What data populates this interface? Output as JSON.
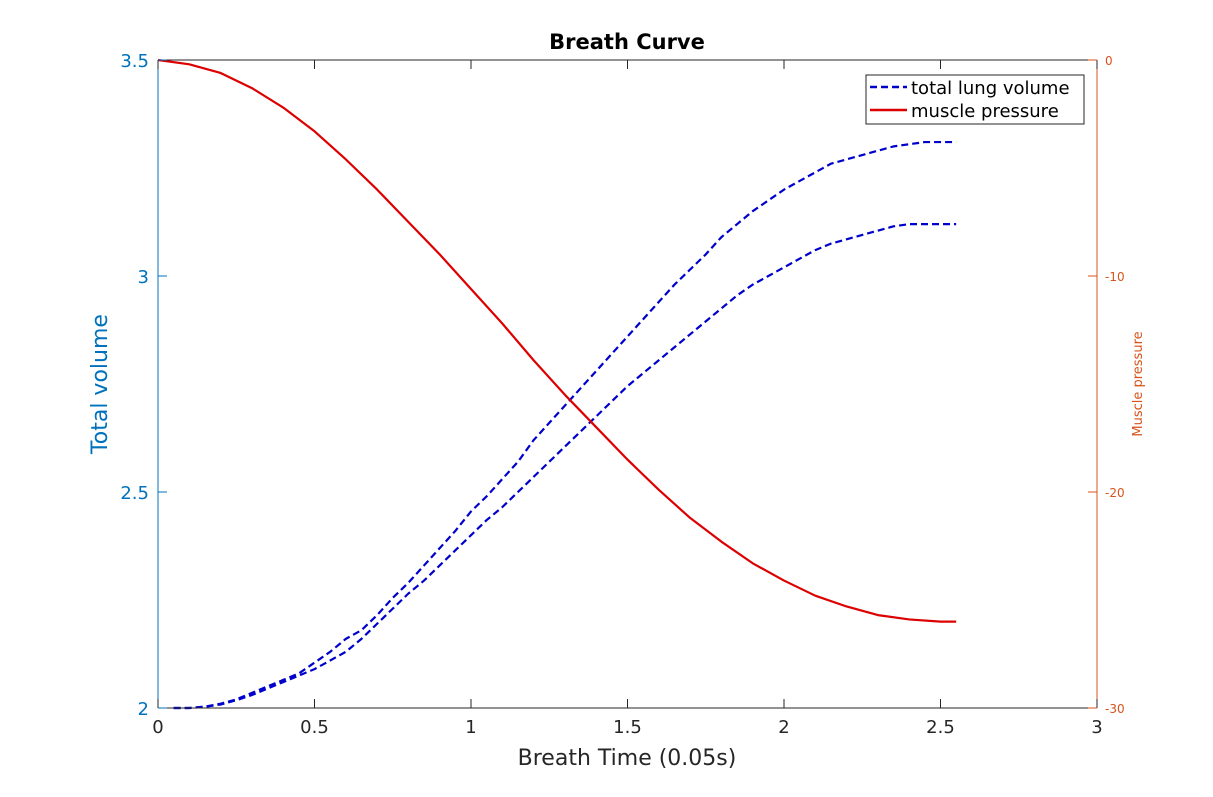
{
  "chart_data": {
    "type": "line",
    "title": "Breath Curve",
    "xlabel": "Breath Time (0.05s)",
    "ylabel_left": "Total volume",
    "ylabel_right": "Muscle pressure",
    "xlim": [
      0,
      3
    ],
    "ylim_left": [
      2,
      3.5
    ],
    "ylim_right": [
      -30,
      0
    ],
    "x_ticks": [
      {
        "value": 0,
        "label": "0"
      },
      {
        "value": 0.5,
        "label": "0.5"
      },
      {
        "value": 1,
        "label": "1"
      },
      {
        "value": 1.5,
        "label": "1.5"
      },
      {
        "value": 2,
        "label": "2"
      },
      {
        "value": 2.5,
        "label": "2.5"
      },
      {
        "value": 3,
        "label": "3"
      }
    ],
    "y_left_ticks": [
      {
        "value": 2,
        "label": "2"
      },
      {
        "value": 2.5,
        "label": "2.5"
      },
      {
        "value": 3,
        "label": "3"
      },
      {
        "value": 3.5,
        "label": "3.5"
      }
    ],
    "y_right_ticks": [
      {
        "value": 0,
        "label": "0"
      },
      {
        "value": -10,
        "label": "-10"
      },
      {
        "value": -20,
        "label": "-20"
      },
      {
        "value": -30,
        "label": "-30"
      }
    ],
    "grid": false,
    "legend_position": "top-right",
    "legend": [
      {
        "label": "total lung volume",
        "color": "#0000cc",
        "style": "dashed"
      },
      {
        "label": "muscle pressure",
        "color": "#dd0000",
        "style": "solid"
      }
    ],
    "colors": {
      "left_axis": "#0072bd",
      "right_axis": "#d95319",
      "volume": "#0000cc",
      "pressure": "#dd0000",
      "text": "#262626",
      "frame": "#262626"
    },
    "series": [
      {
        "name": "total lung volume",
        "axis": "left",
        "style": "dashed",
        "x": [
          0.05,
          0.1,
          0.15,
          0.2,
          0.25,
          0.3,
          0.35,
          0.4,
          0.45,
          0.5,
          0.55,
          0.6,
          0.65,
          0.7,
          0.75,
          0.8,
          0.85,
          0.9,
          0.95,
          1.0,
          1.05,
          1.1,
          1.15,
          1.2,
          1.25,
          1.3,
          1.35,
          1.4,
          1.45,
          1.5,
          1.55,
          1.6,
          1.65,
          1.7,
          1.75,
          1.8,
          1.85,
          1.9,
          1.95,
          2.0,
          2.05,
          2.1,
          2.15,
          2.2,
          2.25,
          2.3,
          2.35,
          2.4,
          2.45,
          2.5,
          2.55
        ],
        "y": [
          2.0,
          2.0,
          2.003,
          2.01,
          2.02,
          2.035,
          2.05,
          2.065,
          2.08,
          2.105,
          2.13,
          2.16,
          2.18,
          2.215,
          2.255,
          2.29,
          2.33,
          2.37,
          2.41,
          2.455,
          2.49,
          2.53,
          2.57,
          2.62,
          2.66,
          2.7,
          2.74,
          2.78,
          2.82,
          2.86,
          2.9,
          2.94,
          2.98,
          3.015,
          3.05,
          3.09,
          3.12,
          3.15,
          3.175,
          3.2,
          3.22,
          3.24,
          3.26,
          3.27,
          3.28,
          3.29,
          3.3,
          3.305,
          3.31,
          3.31,
          3.31
        ]
      },
      {
        "name": "",
        "axis": "left",
        "style": "dashed",
        "x": [
          0.05,
          0.1,
          0.15,
          0.2,
          0.25,
          0.3,
          0.35,
          0.4,
          0.45,
          0.5,
          0.55,
          0.6,
          0.65,
          0.7,
          0.75,
          0.8,
          0.85,
          0.9,
          0.95,
          1.0,
          1.05,
          1.1,
          1.15,
          1.2,
          1.25,
          1.3,
          1.35,
          1.4,
          1.45,
          1.5,
          1.55,
          1.6,
          1.65,
          1.7,
          1.75,
          1.8,
          1.85,
          1.9,
          1.95,
          2.0,
          2.05,
          2.1,
          2.15,
          2.2,
          2.25,
          2.3,
          2.35,
          2.4,
          2.45,
          2.5,
          2.55
        ],
        "y": [
          2.0,
          2.0,
          2.003,
          2.008,
          2.018,
          2.03,
          2.045,
          2.06,
          2.075,
          2.09,
          2.11,
          2.13,
          2.16,
          2.195,
          2.23,
          2.265,
          2.295,
          2.33,
          2.365,
          2.4,
          2.435,
          2.465,
          2.5,
          2.535,
          2.57,
          2.605,
          2.64,
          2.675,
          2.71,
          2.745,
          2.775,
          2.805,
          2.835,
          2.865,
          2.895,
          2.925,
          2.955,
          2.98,
          3.0,
          3.02,
          3.04,
          3.06,
          3.075,
          3.085,
          3.095,
          3.105,
          3.115,
          3.12,
          3.12,
          3.12,
          3.12
        ]
      },
      {
        "name": "muscle pressure",
        "axis": "right",
        "style": "solid",
        "x": [
          0.0,
          0.1,
          0.2,
          0.3,
          0.4,
          0.5,
          0.6,
          0.7,
          0.8,
          0.9,
          1.0,
          1.1,
          1.2,
          1.3,
          1.4,
          1.5,
          1.6,
          1.7,
          1.8,
          1.9,
          2.0,
          2.1,
          2.2,
          2.3,
          2.4,
          2.5,
          2.55
        ],
        "y": [
          0.0,
          -0.2,
          -0.6,
          -1.3,
          -2.2,
          -3.3,
          -4.6,
          -6.0,
          -7.5,
          -9.0,
          -10.6,
          -12.2,
          -13.9,
          -15.5,
          -17.0,
          -18.5,
          -19.9,
          -21.2,
          -22.3,
          -23.3,
          -24.1,
          -24.8,
          -25.3,
          -25.7,
          -25.9,
          -26.0,
          -26.0
        ]
      }
    ]
  }
}
